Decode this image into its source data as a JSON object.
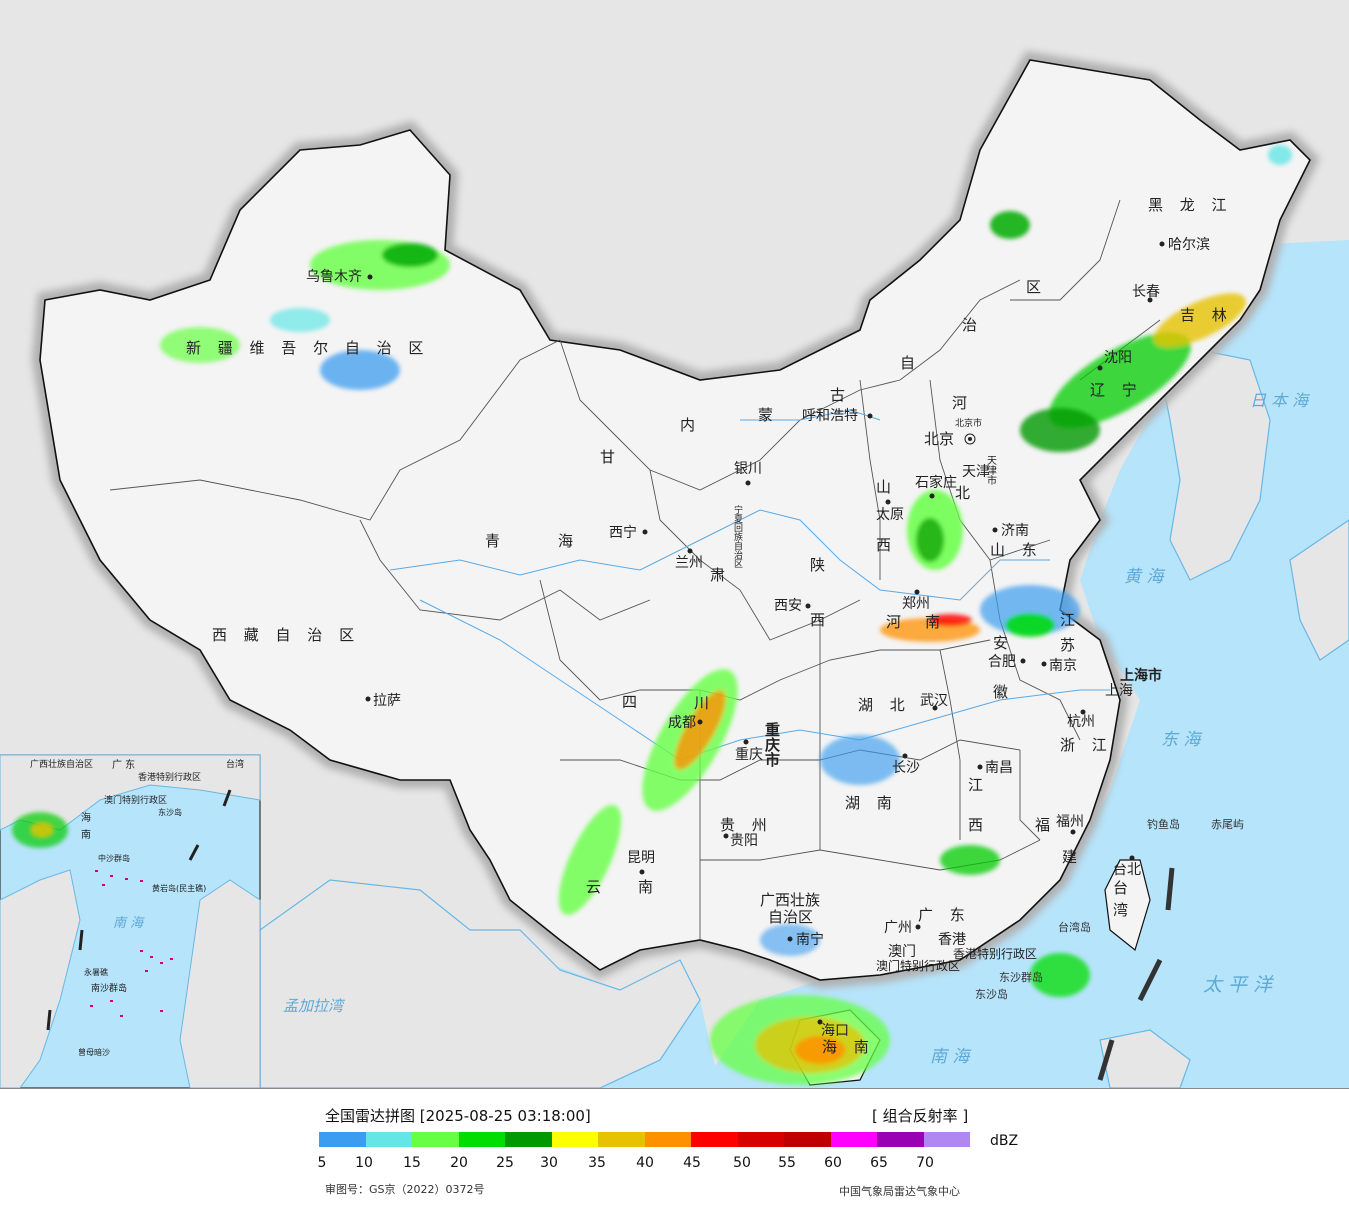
{
  "map": {
    "title": "全国雷达拼图 [2025-08-25 03:18:00]",
    "product": "[ 组合反射率 ]",
    "unit": "dBZ",
    "review_no": "审图号：GS京（2022）0372号",
    "credit": "中国气象局雷达气象中心",
    "provinces": {
      "heilongjiang": "黑 龙 江",
      "jilin": "吉 林",
      "liaoning": "辽 宁",
      "neimenggu_a": "内",
      "neimenggu_b": "蒙",
      "neimenggu_c": "古",
      "neimenggu_d": "自",
      "neimenggu_e": "治",
      "neimenggu_f": "区",
      "xinjiang": "新 疆 维 吾 尔 自 治 区",
      "xizang": "西 藏 自 治 区",
      "qinghai_a": "青",
      "qinghai_b": "海",
      "gansu_a": "甘",
      "gansu_b": "肃",
      "ningxia": "宁夏回族自治区",
      "shaanxi_a": "陕",
      "shaanxi_b": "西",
      "shanxi_a": "山",
      "shanxi_b": "西",
      "hebei_a": "河",
      "hebei_b": "北",
      "shandong": "山 东",
      "henan_a": "河",
      "henan_b": "南",
      "jiangsu_a": "江",
      "jiangsu_b": "苏",
      "anhui_a": "安",
      "anhui_b": "徽",
      "hubei": "湖 北",
      "hunan": "湖 南",
      "sichuan_a": "四",
      "sichuan_b": "川",
      "chongqing": "重庆市",
      "guizhou": "贵 州",
      "yunnan_a": "云",
      "yunnan_b": "南",
      "guangxi_a": "广西壮族",
      "guangxi_b": "自治区",
      "guangdong": "广 东",
      "jiangxi_a": "江",
      "jiangxi_b": "西",
      "zhejiang": "浙 江",
      "fujian_a": "福",
      "fujian_b": "建",
      "hainan": "海 南",
      "taiwan_a": "台",
      "taiwan_b": "湾",
      "shanghai": "上海市",
      "tianjin": "天津市",
      "beijing": "北京市",
      "hk": "香港特别行政区",
      "macau": "澳门特别行政区"
    },
    "cities": {
      "urumqi": "乌鲁木齐",
      "harbin": "哈尔滨",
      "changchun": "长春",
      "shenyang": "沈阳",
      "hohhot": "呼和浩特",
      "beijing": "北京",
      "tianjin": "天津",
      "shijiazhuang": "石家庄",
      "taiyuan": "太原",
      "jinan": "济南",
      "yinchuan": "银川",
      "xining": "西宁",
      "lanzhou": "兰州",
      "xian": "西安",
      "zhengzhou": "郑州",
      "hefei": "合肥",
      "nanjing": "南京",
      "shanghai": "上海",
      "hangzhou": "杭州",
      "wuhan": "武汉",
      "lhasa": "拉萨",
      "chengdu": "成都",
      "chongqing": "重庆",
      "changsha": "长沙",
      "nanchang": "南昌",
      "fuzhou": "福州",
      "guiyang": "贵阳",
      "kunming": "昆明",
      "nanning": "南宁",
      "guangzhou": "广州",
      "macau": "澳门",
      "hongkong": "香港",
      "haikou": "海口",
      "taipei": "台北",
      "diaoyu": "钓鱼岛",
      "chiwei": "赤尾屿",
      "taiwan_island": "台湾岛",
      "dongsha_qundao": "东沙群岛",
      "dongsha_dao": "东沙岛"
    },
    "seas": {
      "sea_of_japan": "日 本 海",
      "yellow_sea": "黄 海",
      "east_china_sea": "东 海",
      "pacific": "太 平 洋",
      "south_china_sea": "南 海",
      "bay_of_bengal": "孟加拉湾"
    },
    "inset": {
      "guangxi": "广西壮族自治区",
      "guangdong": "广 东",
      "taiwan": "台湾",
      "hk": "香港特别行政区",
      "macau": "澳门特别行政区",
      "dongsha": "东沙岛",
      "zhongsha": "中沙群岛",
      "huangyan": "黄岩岛(民主礁)",
      "south_sea": "南 海",
      "yongshu": "永暑礁",
      "nansha": "南沙群岛",
      "zengmu": "曾母暗沙",
      "hainan_a": "海",
      "hainan_b": "南"
    }
  },
  "legend": {
    "colors": [
      "#3c9cf0",
      "#64e6e6",
      "#66ff44",
      "#00dd00",
      "#009900",
      "#ffff00",
      "#e6c200",
      "#ff9000",
      "#ff0000",
      "#d60000",
      "#c00000",
      "#ff00ff",
      "#9a00b4",
      "#b086f0"
    ],
    "ticks": [
      "5",
      "10",
      "15",
      "20",
      "25",
      "30",
      "35",
      "40",
      "45",
      "50",
      "55",
      "60",
      "65",
      "70"
    ]
  }
}
